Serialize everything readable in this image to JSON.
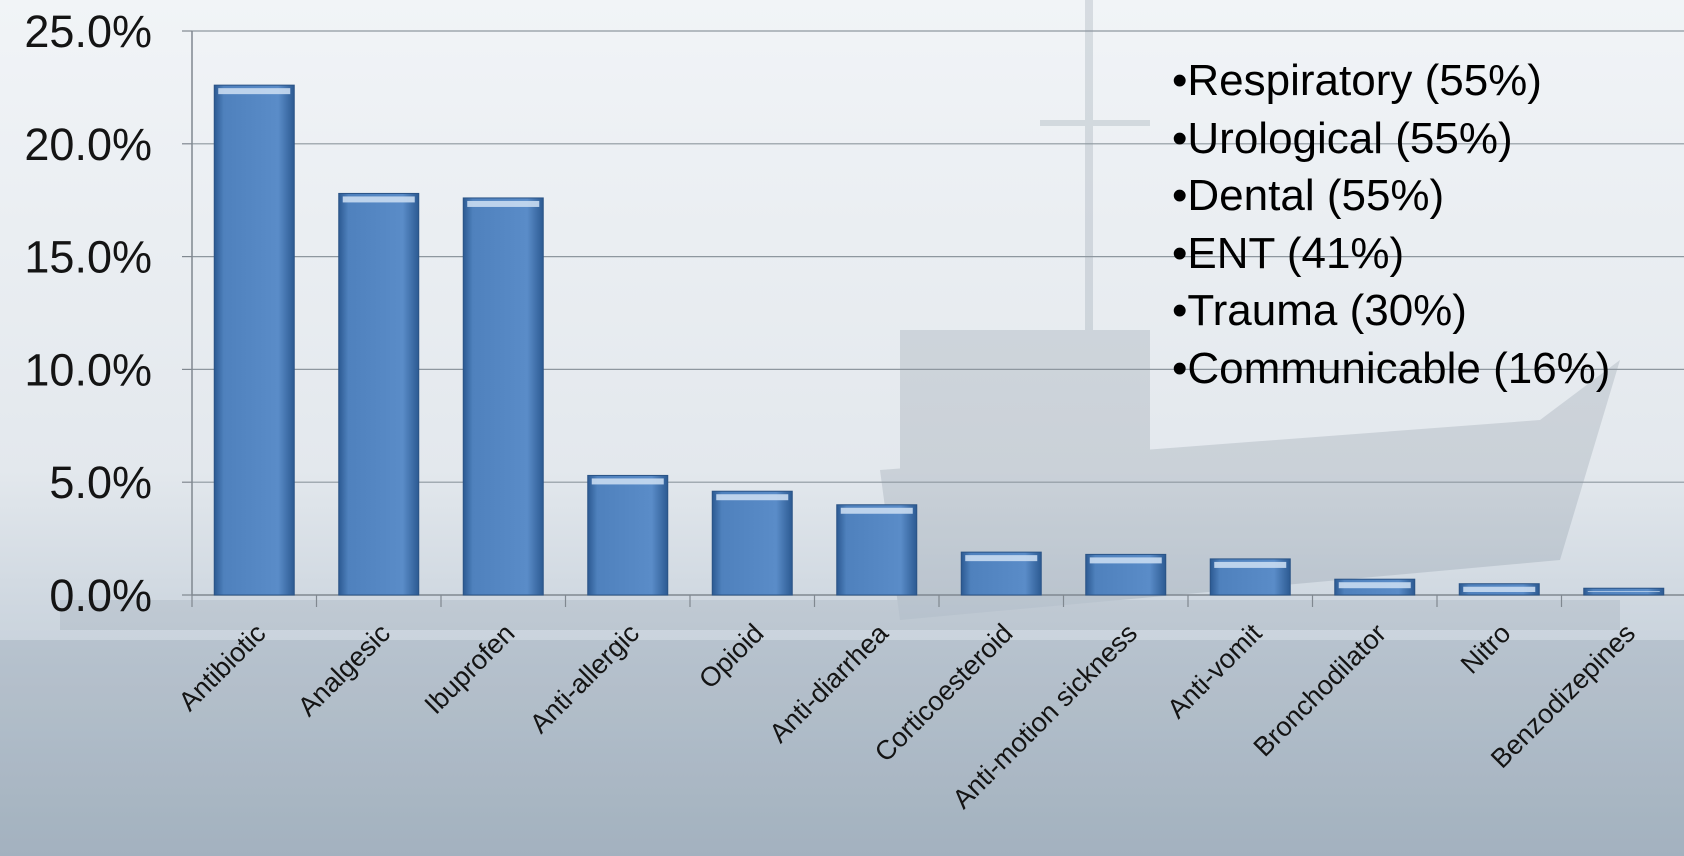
{
  "chart_data": {
    "type": "bar",
    "categories": [
      "Antibiotic",
      "Analgesic",
      "Ibuprofen",
      "Anti-allergic",
      "Opioid",
      "Anti-diarrhea",
      "Corticoesteroid",
      "Anti-motion sickness",
      "Anti-vomit",
      "Bronchodilator",
      "Nitro",
      "Benzodizepines"
    ],
    "values": [
      22.6,
      17.8,
      17.6,
      5.3,
      4.6,
      4.0,
      1.9,
      1.8,
      1.6,
      0.7,
      0.5,
      0.3
    ],
    "ylim": [
      0,
      25
    ],
    "yticks": [
      "0.0%",
      "5.0%",
      "10.0%",
      "15.0%",
      "20.0%",
      "25.0%"
    ],
    "grid": true,
    "bar_color": "#4f81bd",
    "annotations": [
      "•Respiratory (55%)",
      "•Urological (55%)",
      "•Dental (55%)",
      "•ENT (41%)",
      "•Trauma (30%)",
      "•Communicable (16%)"
    ]
  }
}
